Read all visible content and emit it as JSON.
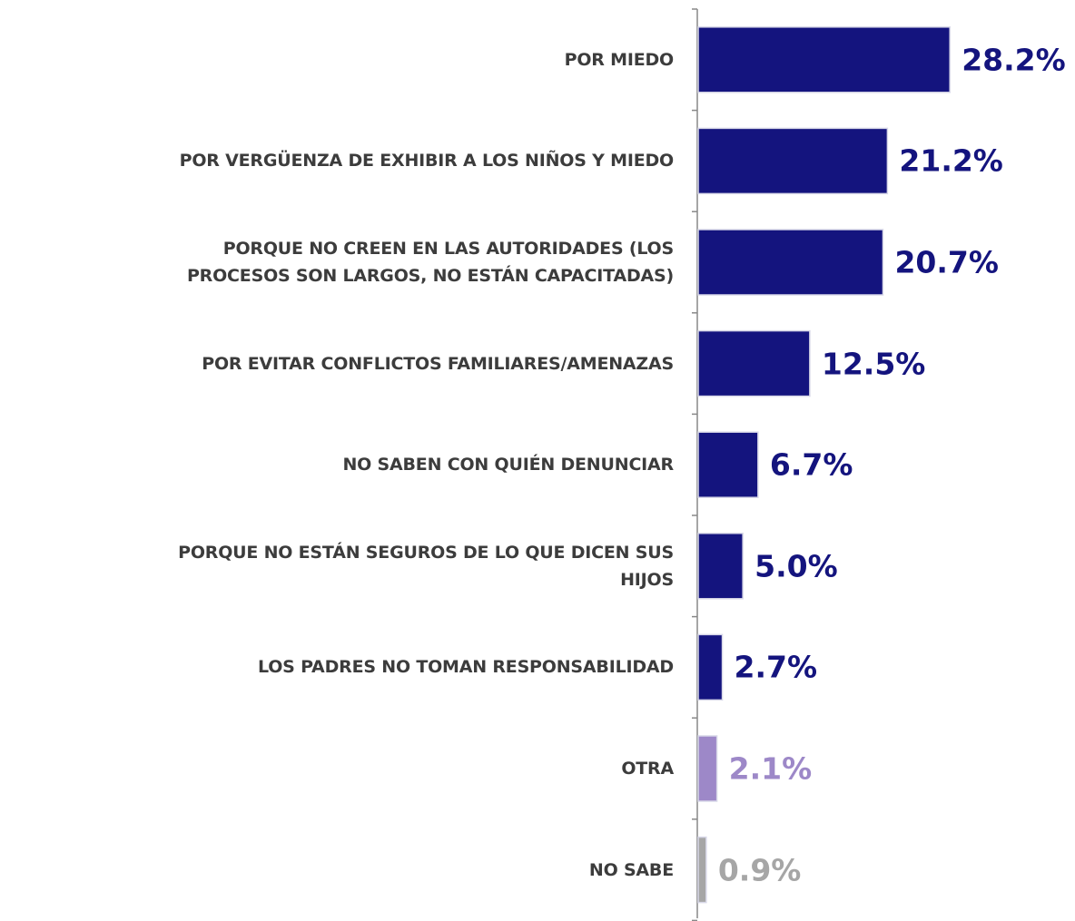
{
  "chart_data": {
    "type": "barh",
    "categories": [
      "POR MIEDO",
      "POR VERGÜENZA DE EXHIBIR A LOS NIÑOS Y MIEDO",
      "PORQUE NO CREEN EN LAS AUTORIDADES (LOS\nPROCESOS SON LARGOS, NO ESTÁN CAPACITADAS)",
      "POR EVITAR CONFLICTOS FAMILIARES/AMENAZAS",
      "NO SABEN CON QUIÉN DENUNCIAR",
      "PORQUE NO ESTÁN SEGUROS DE LO QUE DICEN SUS\nHIJOS",
      "LOS PADRES NO TOMAN RESPONSABILIDAD",
      "OTRA",
      "NO SABE"
    ],
    "values": [
      28.2,
      21.2,
      20.7,
      12.5,
      6.7,
      5.0,
      2.7,
      2.1,
      0.9
    ],
    "value_labels": [
      "28.2%",
      "21.2%",
      "20.7%",
      "12.5%",
      "6.7%",
      "5.0%",
      "2.7%",
      "2.1%",
      "0.9%"
    ],
    "colors": [
      "#14147e",
      "#14147e",
      "#14147e",
      "#14147e",
      "#14147e",
      "#14147e",
      "#14147e",
      "#9d88c8",
      "#a6a6a6"
    ]
  }
}
